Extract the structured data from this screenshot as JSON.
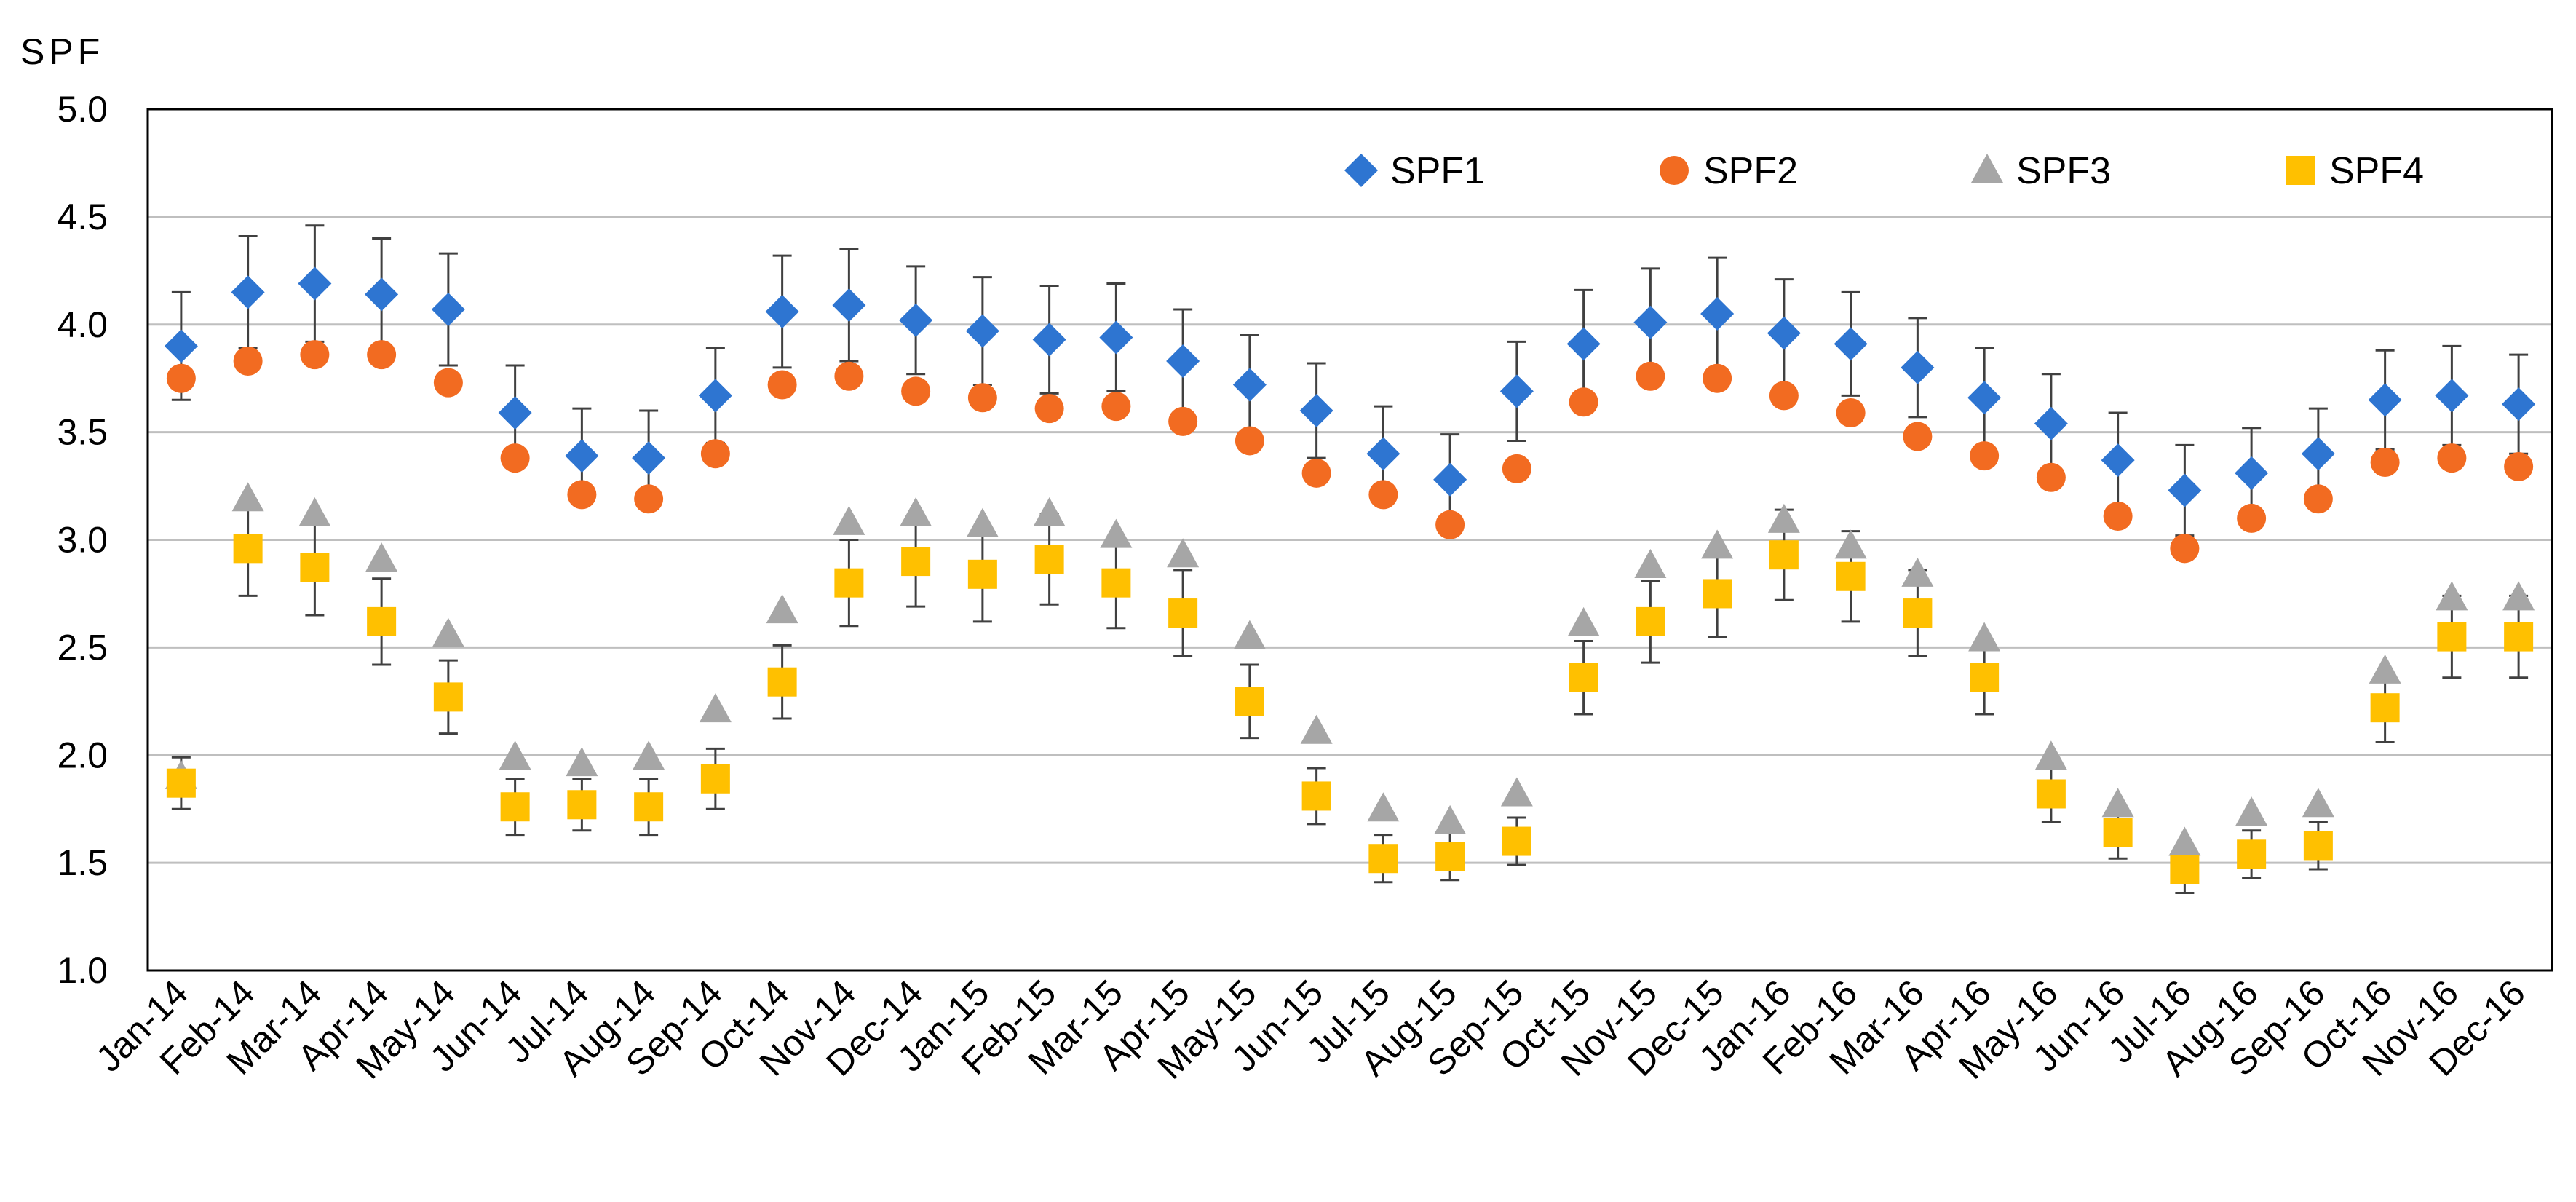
{
  "chart_data": {
    "type": "scatter",
    "title": "",
    "xlabel": "",
    "ylabel": "SPF",
    "ylim": [
      1.0,
      5.0
    ],
    "yticks": [
      "1.0",
      "1.5",
      "2.0",
      "2.5",
      "3.0",
      "3.5",
      "4.0",
      "4.5",
      "5.0"
    ],
    "grid": true,
    "legend_position": "top-right",
    "categories": [
      "Jan-14",
      "Feb-14",
      "Mar-14",
      "Apr-14",
      "May-14",
      "Jun-14",
      "Jul-14",
      "Aug-14",
      "Sep-14",
      "Oct-14",
      "Nov-14",
      "Dec-14",
      "Jan-15",
      "Feb-15",
      "Mar-15",
      "Apr-15",
      "May-15",
      "Jun-15",
      "Jul-15",
      "Aug-15",
      "Sep-15",
      "Oct-15",
      "Nov-15",
      "Dec-15",
      "Jan-16",
      "Feb-16",
      "Mar-16",
      "Apr-16",
      "May-16",
      "Jun-16",
      "Jul-16",
      "Aug-16",
      "Sep-16",
      "Oct-16",
      "Nov-16",
      "Dec-16"
    ],
    "series": [
      {
        "name": "SPF1",
        "marker": "diamond",
        "color": "#2E75D1",
        "values": [
          3.9,
          4.15,
          4.19,
          4.14,
          4.07,
          3.59,
          3.39,
          3.38,
          3.67,
          4.06,
          4.09,
          4.02,
          3.97,
          3.93,
          3.94,
          3.83,
          3.72,
          3.6,
          3.4,
          3.28,
          3.69,
          3.91,
          4.01,
          4.05,
          3.96,
          3.91,
          3.8,
          3.66,
          3.54,
          3.37,
          3.23,
          3.31,
          3.4,
          3.65,
          3.67,
          3.63
        ],
        "err": [
          0.25,
          0.26,
          0.27,
          0.26,
          0.26,
          0.22,
          0.22,
          0.22,
          0.22,
          0.26,
          0.26,
          0.25,
          0.25,
          0.25,
          0.25,
          0.24,
          0.23,
          0.22,
          0.22,
          0.21,
          0.23,
          0.25,
          0.25,
          0.26,
          0.25,
          0.24,
          0.23,
          0.23,
          0.23,
          0.22,
          0.21,
          0.21,
          0.21,
          0.23,
          0.23,
          0.23
        ]
      },
      {
        "name": "SPF2",
        "marker": "circle",
        "color": "#F26B21",
        "values": [
          3.75,
          3.83,
          3.86,
          3.86,
          3.73,
          3.38,
          3.21,
          3.19,
          3.4,
          3.72,
          3.76,
          3.69,
          3.66,
          3.61,
          3.62,
          3.55,
          3.46,
          3.31,
          3.21,
          3.07,
          3.33,
          3.64,
          3.76,
          3.75,
          3.67,
          3.59,
          3.48,
          3.39,
          3.29,
          3.11,
          2.96,
          3.1,
          3.19,
          3.36,
          3.38,
          3.34
        ]
      },
      {
        "name": "SPF3",
        "marker": "triangle",
        "color": "#A6A6A6",
        "values": [
          1.9,
          3.19,
          3.12,
          2.91,
          2.56,
          1.99,
          1.96,
          1.99,
          2.21,
          2.67,
          3.08,
          3.12,
          3.07,
          3.12,
          3.02,
          2.93,
          2.55,
          2.11,
          1.75,
          1.69,
          1.82,
          2.61,
          2.88,
          2.97,
          3.09,
          2.97,
          2.84,
          2.54,
          1.99,
          1.77,
          1.59,
          1.73,
          1.77,
          2.39,
          2.73,
          2.73
        ]
      },
      {
        "name": "SPF4",
        "marker": "square",
        "color": "#FFC000",
        "values": [
          1.87,
          2.96,
          2.87,
          2.62,
          2.27,
          1.76,
          1.77,
          1.76,
          1.89,
          2.34,
          2.8,
          2.9,
          2.84,
          2.91,
          2.8,
          2.66,
          2.25,
          1.81,
          1.52,
          1.53,
          1.6,
          2.36,
          2.62,
          2.75,
          2.93,
          2.83,
          2.66,
          2.36,
          1.82,
          1.64,
          1.47,
          1.54,
          1.58,
          2.22,
          2.55,
          2.55
        ],
        "err": [
          0.12,
          0.22,
          0.22,
          0.2,
          0.17,
          0.13,
          0.12,
          0.13,
          0.14,
          0.17,
          0.2,
          0.21,
          0.22,
          0.21,
          0.21,
          0.2,
          0.17,
          0.13,
          0.11,
          0.11,
          0.11,
          0.17,
          0.19,
          0.2,
          0.21,
          0.21,
          0.2,
          0.17,
          0.13,
          0.12,
          0.11,
          0.11,
          0.11,
          0.16,
          0.19,
          0.19
        ]
      }
    ]
  }
}
